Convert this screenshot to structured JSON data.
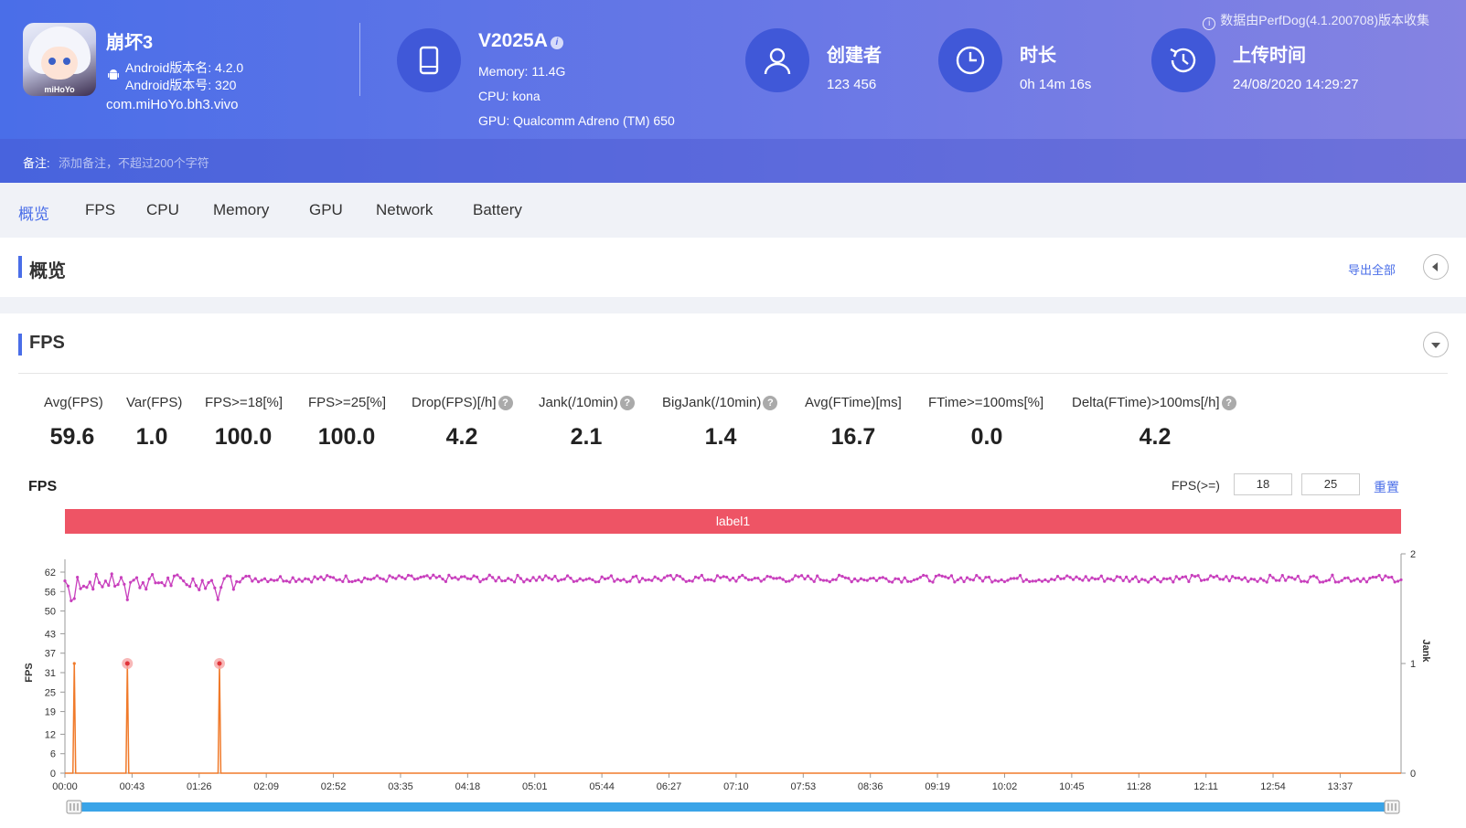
{
  "source_note": "数据由PerfDog(4.1.200708)版本收集",
  "app": {
    "name": "崩坏3",
    "version_name": "Android版本名: 4.2.0",
    "version_code": "Android版本号: 320",
    "package": "com.miHoYo.bh3.vivo",
    "icon_brand": "miHoYo"
  },
  "device": {
    "name": "V2025A",
    "memory": "Memory: 11.4G",
    "cpu": "CPU: kona",
    "gpu": "GPU: Qualcomm Adreno (TM) 650"
  },
  "creator": {
    "title": "创建者",
    "value": "123 456"
  },
  "duration": {
    "title": "时长",
    "value": "0h 14m 16s"
  },
  "upload": {
    "title": "上传时间",
    "value": "24/08/2020 14:29:27"
  },
  "note": {
    "label": "备注:",
    "placeholder": "添加备注，不超过200个字符"
  },
  "tabs": [
    "概览",
    "FPS",
    "CPU",
    "Memory",
    "GPU",
    "Network",
    "Battery"
  ],
  "overview": {
    "title": "概览",
    "export": "导出全部"
  },
  "fps_section": {
    "title": "FPS",
    "metrics": [
      {
        "label": "Avg(FPS)",
        "value": "59.6",
        "help": false
      },
      {
        "label": "Var(FPS)",
        "value": "1.0",
        "help": false
      },
      {
        "label": "FPS>=18[%]",
        "value": "100.0",
        "help": false
      },
      {
        "label": "FPS>=25[%]",
        "value": "100.0",
        "help": false
      },
      {
        "label": "Drop(FPS)[/h]",
        "value": "4.2",
        "help": true
      },
      {
        "label": "Jank(/10min)",
        "value": "2.1",
        "help": true
      },
      {
        "label": "BigJank(/10min)",
        "value": "1.4",
        "help": true
      },
      {
        "label": "Avg(FTime)[ms]",
        "value": "16.7",
        "help": false
      },
      {
        "label": "FTime>=100ms[%]",
        "value": "0.0",
        "help": false
      },
      {
        "label": "Delta(FTime)>100ms[/h]",
        "value": "4.2",
        "help": true
      }
    ],
    "chart_title": "FPS",
    "threshold_label": "FPS(>=)",
    "threshold_1": "18",
    "threshold_2": "25",
    "reset": "重置",
    "label_bar": "label1",
    "help_glyph": "?"
  },
  "colors": {
    "accent": "#4a6ee8",
    "fps_line": "#c83fbd",
    "jank_line": "#f07a2a",
    "label_bar": "#ee5465",
    "scrollbar": "#3aa4e8"
  },
  "chart_data": {
    "type": "line",
    "title": "FPS",
    "ylabel": "FPS",
    "y2label": "Jank",
    "y_ticks": [
      0,
      6,
      12,
      19,
      25,
      31,
      37,
      43,
      50,
      56,
      62
    ],
    "y2_ticks": [
      0,
      1,
      2
    ],
    "x_ticks": [
      "00:00",
      "00:43",
      "01:26",
      "02:09",
      "02:52",
      "03:35",
      "04:18",
      "05:01",
      "05:44",
      "06:27",
      "07:10",
      "07:53",
      "08:36",
      "09:19",
      "10:02",
      "10:45",
      "11:28",
      "12:11",
      "12:54",
      "13:37"
    ],
    "xlim_seconds": [
      0,
      856
    ],
    "series": [
      {
        "name": "FPS",
        "axis": "left",
        "typical": 60,
        "min_dip": 53,
        "dip_times_seconds": [
          5,
          40,
          98
        ]
      },
      {
        "name": "Jank",
        "axis": "right",
        "points": [
          [
            6,
            1
          ],
          [
            40,
            1
          ],
          [
            99,
            1
          ]
        ]
      }
    ],
    "big_jank_markers_seconds": [
      40,
      99
    ]
  }
}
